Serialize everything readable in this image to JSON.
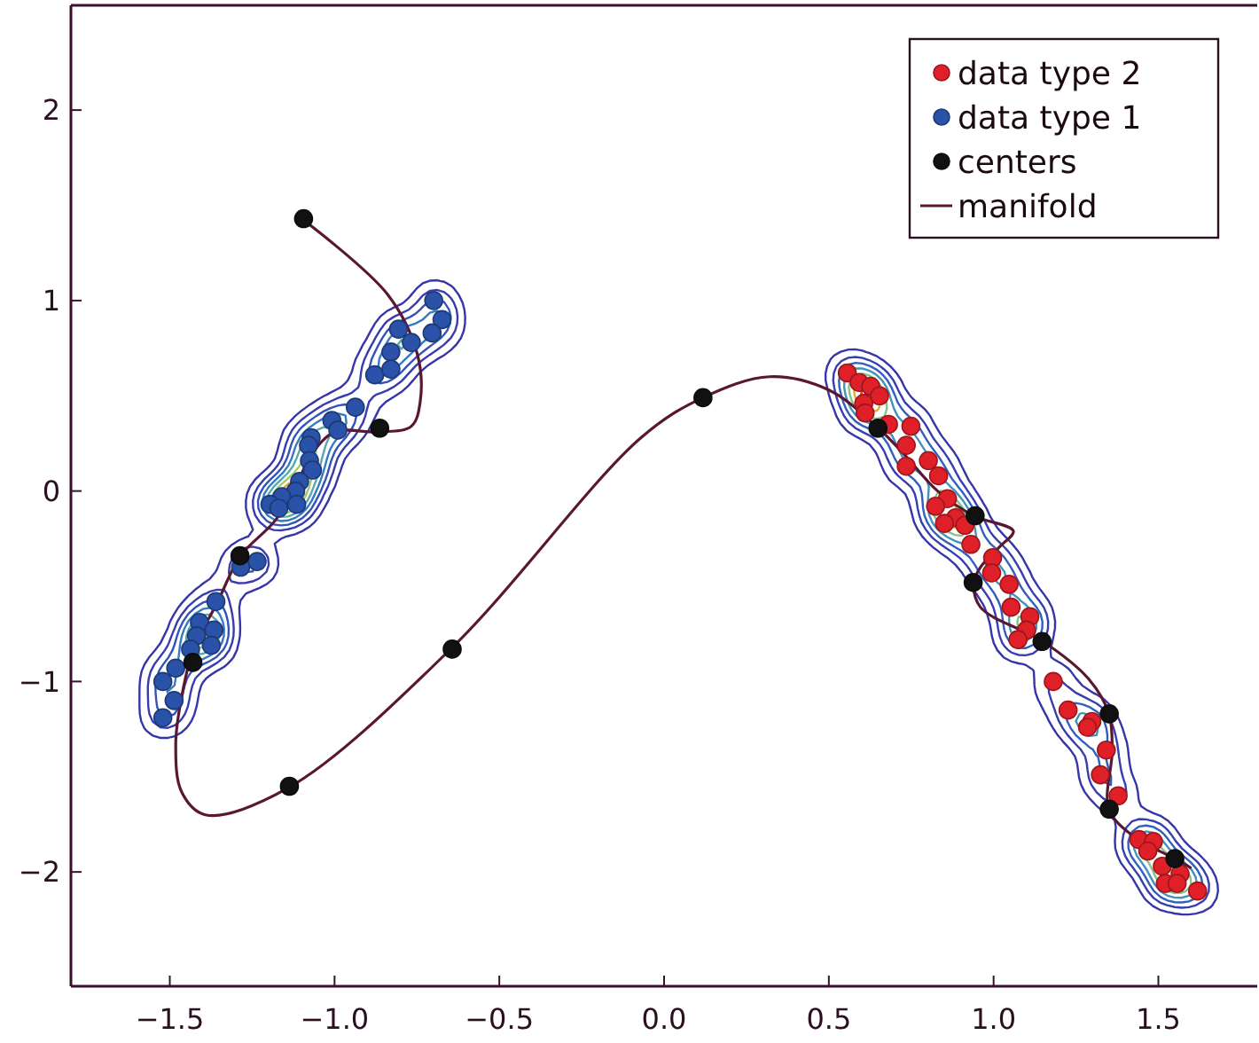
{
  "chart_data": {
    "type": "scatter",
    "xlim": [
      -1.8,
      1.8
    ],
    "ylim": [
      -2.6,
      2.55
    ],
    "xticks": [
      {
        "value": -1.5,
        "label": "−1.5"
      },
      {
        "value": -1,
        "label": "−1.0"
      },
      {
        "value": -0.5,
        "label": "−0.5"
      },
      {
        "value": 0,
        "label": "0.0"
      },
      {
        "value": 0.5,
        "label": "0.5"
      },
      {
        "value": 1,
        "label": "1.0"
      },
      {
        "value": 1.5,
        "label": "1.5"
      }
    ],
    "yticks": [
      {
        "value": -2,
        "label": "−2"
      },
      {
        "value": -1,
        "label": "−1"
      },
      0,
      1,
      2
    ],
    "legend": "top right",
    "marker": "circle",
    "line_style": "solid",
    "series": [
      {
        "name": "data type 2",
        "color": "#e02028",
        "x": [
          0.556,
          0.592,
          0.627,
          0.654,
          0.606,
          0.61,
          0.681,
          0.749,
          0.735,
          0.802,
          0.735,
          0.833,
          0.86,
          0.824,
          0.885,
          0.851,
          0.913,
          0.931,
          0.997,
          0.994,
          1.047,
          1.053,
          1.11,
          1.1,
          1.074,
          1.181,
          1.226,
          1.298,
          1.285,
          1.342,
          1.324,
          1.378,
          1.441,
          1.485,
          1.468,
          1.512,
          1.566,
          1.521,
          1.557,
          1.619
        ],
        "values": [
          0.62,
          0.57,
          0.55,
          0.5,
          0.46,
          0.41,
          0.35,
          0.34,
          0.24,
          0.16,
          0.13,
          0.08,
          -0.04,
          -0.08,
          -0.14,
          -0.17,
          -0.18,
          -0.28,
          -0.35,
          -0.43,
          -0.49,
          -0.61,
          -0.66,
          -0.73,
          -0.78,
          -1.0,
          -1.15,
          -1.21,
          -1.24,
          -1.36,
          -1.49,
          -1.6,
          -1.83,
          -1.84,
          -1.89,
          -1.97,
          -2.01,
          -2.06,
          -2.06,
          -2.1
        ]
      },
      {
        "name": "data type 1",
        "color": "#2a52a8",
        "x": [
          -0.699,
          -0.674,
          -0.806,
          -0.704,
          -0.767,
          -0.829,
          -0.878,
          -0.829,
          -0.937,
          -1.008,
          -0.99,
          -1.071,
          -1.079,
          -1.076,
          -1.067,
          -1.106,
          -1.118,
          -1.16,
          -1.115,
          -1.196,
          -1.169,
          -1.235,
          -1.285,
          -1.36,
          -1.41,
          -1.366,
          -1.419,
          -1.374,
          -1.437,
          -1.482,
          -1.521,
          -1.487,
          -1.521
        ],
        "values": [
          1.0,
          0.9,
          0.85,
          0.83,
          0.78,
          0.73,
          0.61,
          0.64,
          0.44,
          0.37,
          0.32,
          0.28,
          0.24,
          0.16,
          0.11,
          0.05,
          0.0,
          -0.03,
          -0.07,
          -0.07,
          -0.09,
          -0.37,
          -0.4,
          -0.58,
          -0.69,
          -0.73,
          -0.76,
          -0.81,
          -0.83,
          -0.93,
          -1.0,
          -1.1,
          -1.19
        ]
      },
      {
        "name": "centers",
        "color": "#111111",
        "x": [
          -1.094,
          -0.863,
          -1.287,
          -1.43,
          -0.643,
          -1.137,
          0.118,
          0.649,
          0.944,
          0.938,
          1.147,
          1.351,
          1.351,
          1.55
        ],
        "values": [
          1.43,
          0.33,
          -0.34,
          -0.9,
          -0.83,
          -1.55,
          0.49,
          0.33,
          -0.13,
          -0.48,
          -0.79,
          -1.17,
          -1.67,
          -1.93
        ]
      },
      {
        "name": "manifold",
        "type": "line",
        "marker": "none",
        "color": "#5a1830",
        "x": [
          -1.092,
          -0.838,
          -0.749,
          -0.74,
          -0.767,
          -0.865,
          -0.999,
          -1.071,
          -1.106,
          -1.178,
          -1.285,
          -1.357,
          -1.428,
          -1.464,
          -1.482,
          -1.464,
          -1.392,
          -1.142,
          -0.642,
          -0.07,
          0.118,
          0.32,
          0.5,
          0.65,
          0.73,
          0.83,
          0.94,
          1.06,
          1.02,
          0.96,
          0.94,
          0.96,
          1.15,
          1.29,
          1.35,
          1.36,
          1.35,
          1.43,
          1.55,
          1.6
        ],
        "values": [
          1.42,
          1.03,
          0.72,
          0.47,
          0.34,
          0.31,
          0.31,
          0.19,
          0.07,
          -0.15,
          -0.34,
          -0.59,
          -0.83,
          -1.08,
          -1.33,
          -1.58,
          -1.7,
          -1.56,
          -0.82,
          0.28,
          0.49,
          0.6,
          0.53,
          0.33,
          0.19,
          0.0,
          -0.13,
          -0.21,
          -0.29,
          -0.4,
          -0.48,
          -0.61,
          -0.79,
          -0.99,
          -1.17,
          -1.36,
          -1.67,
          -1.82,
          -1.93,
          -1.98
        ]
      }
    ]
  }
}
